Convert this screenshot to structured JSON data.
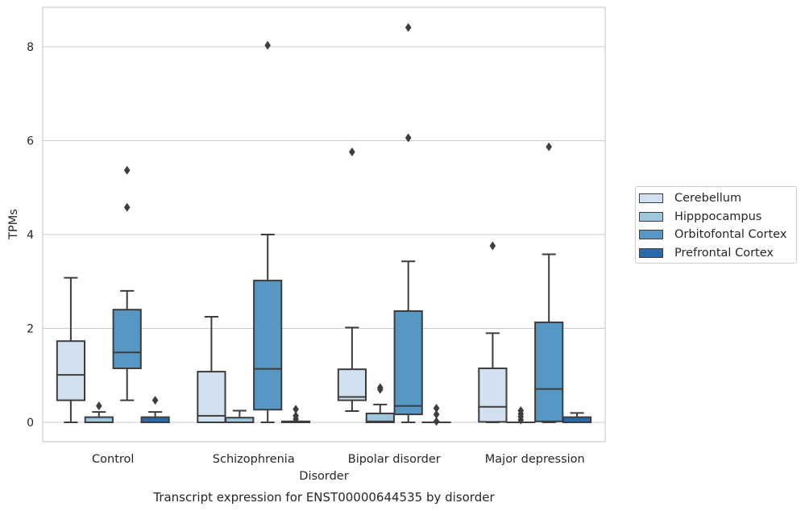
{
  "chart_data": {
    "type": "box",
    "title": "Transcript expression for ENST00000644535 by disorder",
    "xlabel": "Disorder",
    "ylabel": "TPMs",
    "ylim": [
      -0.4,
      8.85
    ],
    "yticks": [
      0,
      2,
      4,
      6,
      8
    ],
    "grid": "horizontal",
    "legend_position": "right",
    "categories": [
      "Control",
      "Schizophrenia",
      "Bipolar disorder",
      "Major depression"
    ],
    "series": [
      {
        "name": "Cerebellum",
        "color": "#d1e1ef",
        "boxes": [
          {
            "whisker_low": 0,
            "q1": 0.47,
            "median": 1.01,
            "q3": 1.73,
            "whisker_high": 3.08,
            "outliers": []
          },
          {
            "whisker_low": 0,
            "q1": 0.0,
            "median": 0.14,
            "q3": 1.08,
            "whisker_high": 2.25,
            "outliers": []
          },
          {
            "whisker_low": 0.24,
            "q1": 0.47,
            "median": 0.54,
            "q3": 1.13,
            "whisker_high": 2.02,
            "outliers": [
              5.76
            ]
          },
          {
            "whisker_low": 0,
            "q1": 0.01,
            "median": 0.33,
            "q3": 1.15,
            "whisker_high": 1.9,
            "outliers": [
              3.76
            ]
          }
        ]
      },
      {
        "name": "Hipppocampus",
        "color": "#9fc6dc",
        "boxes": [
          {
            "whisker_low": 0,
            "q1": 0.0,
            "median": 0.0,
            "q3": 0.11,
            "whisker_high": 0.22,
            "outliers": [
              0.35
            ]
          },
          {
            "whisker_low": 0,
            "q1": 0.0,
            "median": 0.0,
            "q3": 0.1,
            "whisker_high": 0.25,
            "outliers": []
          },
          {
            "whisker_low": 0,
            "q1": 0.0,
            "median": 0.02,
            "q3": 0.19,
            "whisker_high": 0.38,
            "outliers": [
              0.7,
              0.74
            ]
          },
          {
            "whisker_low": 0,
            "q1": 0.0,
            "median": 0.0,
            "q3": 0.0,
            "whisker_high": 0.0,
            "outliers": [
              0.05,
              0.12,
              0.18,
              0.25
            ]
          }
        ]
      },
      {
        "name": "Orbitofontal Cortex",
        "color": "#5797c4",
        "boxes": [
          {
            "whisker_low": 0.47,
            "q1": 1.15,
            "median": 1.49,
            "q3": 2.4,
            "whisker_high": 2.8,
            "outliers": [
              4.58,
              5.37
            ]
          },
          {
            "whisker_low": 0,
            "q1": 0.27,
            "median": 1.14,
            "q3": 3.02,
            "whisker_high": 4.0,
            "outliers": [
              8.03
            ]
          },
          {
            "whisker_low": 0,
            "q1": 0.17,
            "median": 0.35,
            "q3": 2.37,
            "whisker_high": 3.43,
            "outliers": [
              6.06,
              8.41
            ]
          },
          {
            "whisker_low": 0,
            "q1": 0.02,
            "median": 0.71,
            "q3": 2.13,
            "whisker_high": 3.58,
            "outliers": [
              5.87
            ]
          }
        ]
      },
      {
        "name": "Prefrontal Cortex",
        "color": "#2a6aaa",
        "boxes": [
          {
            "whisker_low": 0,
            "q1": 0.0,
            "median": 0.0,
            "q3": 0.11,
            "whisker_high": 0.22,
            "outliers": [
              0.47
            ]
          },
          {
            "whisker_low": 0,
            "q1": 0.0,
            "median": 0.0,
            "q3": 0.02,
            "whisker_high": 0.02,
            "outliers": [
              0.07,
              0.14,
              0.28
            ]
          },
          {
            "whisker_low": 0,
            "q1": 0.0,
            "median": 0.0,
            "q3": 0.0,
            "whisker_high": 0.0,
            "outliers": [
              0.02,
              0.17,
              0.3
            ]
          },
          {
            "whisker_low": 0,
            "q1": 0.0,
            "median": 0.0,
            "q3": 0.11,
            "whisker_high": 0.2,
            "outliers": []
          }
        ]
      }
    ]
  }
}
